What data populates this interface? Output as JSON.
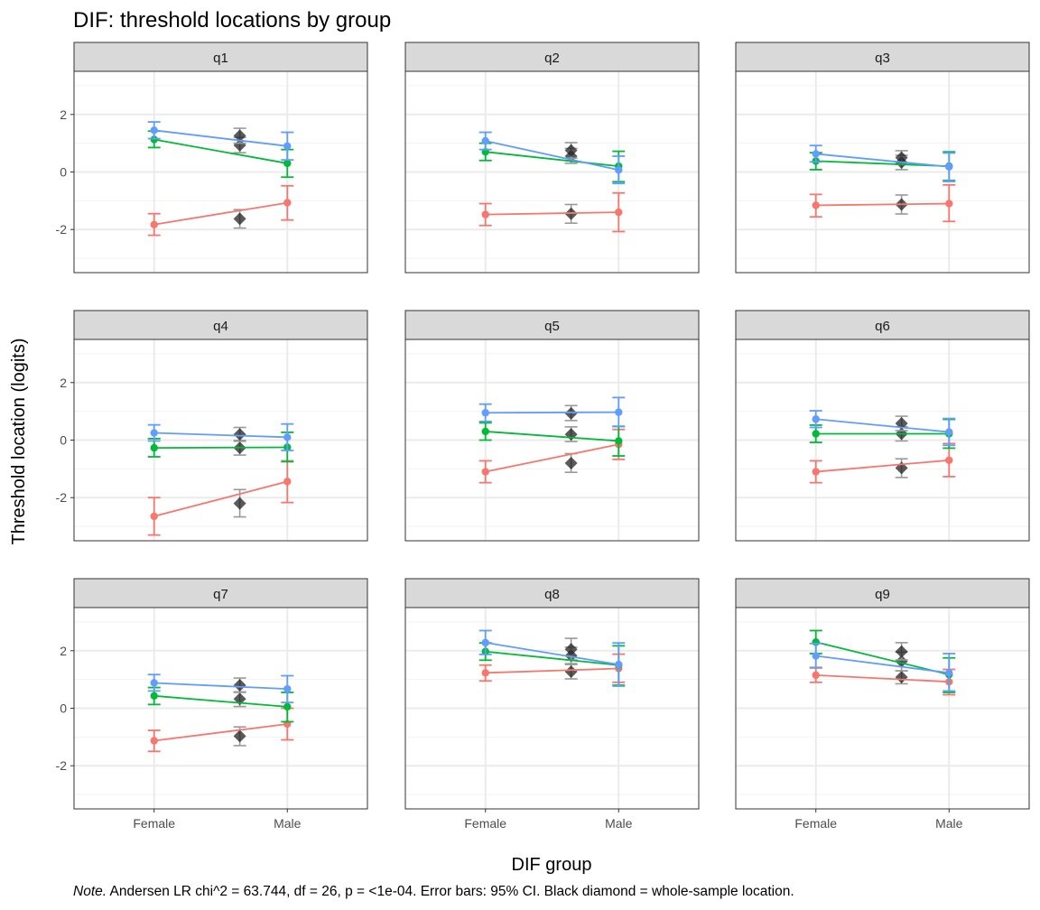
{
  "chart_data": {
    "type": "line",
    "title": "DIF: threshold locations by group",
    "xlabel": "DIF group",
    "ylabel": "Threshold location (logits)",
    "note_prefix": "Note.",
    "note_text": " Andersen LR chi^2 = 63.744, df = 26, p = <1e-04. Error bars: 95% CI. Black diamond = whole-sample location.",
    "categories": [
      "Female",
      "Male"
    ],
    "ylim": [
      -3.5,
      3.5
    ],
    "yticks": [
      2,
      0,
      -2
    ],
    "grid": true,
    "facets": [
      {
        "label": "q1",
        "series": [
          {
            "color": "#f8766d",
            "values": [
              -1.83,
              -1.07
            ],
            "ci": [
              [
                -2.2,
                -1.45
              ],
              [
                -1.67,
                -0.48
              ]
            ],
            "overall": -1.63,
            "overall_ci": [
              -1.95,
              -1.31
            ]
          },
          {
            "color": "#00ba38",
            "values": [
              1.13,
              0.3
            ],
            "ci": [
              [
                0.85,
                1.42
              ],
              [
                -0.18,
                0.78
              ]
            ],
            "overall": 0.93,
            "overall_ci": [
              0.67,
              1.2
            ]
          },
          {
            "color": "#619cff",
            "values": [
              1.45,
              0.9
            ],
            "ci": [
              [
                1.16,
                1.74
              ],
              [
                0.42,
                1.38
              ]
            ],
            "overall": 1.26,
            "overall_ci": [
              1.0,
              1.52
            ]
          }
        ]
      },
      {
        "label": "q2",
        "series": [
          {
            "color": "#f8766d",
            "values": [
              -1.48,
              -1.4
            ],
            "ci": [
              [
                -1.86,
                -1.1
              ],
              [
                -2.07,
                -0.73
              ]
            ],
            "overall": -1.45,
            "overall_ci": [
              -1.78,
              -1.13
            ]
          },
          {
            "color": "#00ba38",
            "values": [
              0.7,
              0.2
            ],
            "ci": [
              [
                0.4,
                1.0
              ],
              [
                -0.34,
                0.72
              ]
            ],
            "overall": 0.55,
            "overall_ci": [
              0.3,
              0.82
            ]
          },
          {
            "color": "#619cff",
            "values": [
              1.08,
              0.07
            ],
            "ci": [
              [
                0.78,
                1.38
              ],
              [
                -0.4,
                0.55
              ]
            ],
            "overall": 0.75,
            "overall_ci": [
              0.48,
              1.02
            ]
          }
        ]
      },
      {
        "label": "q3",
        "series": [
          {
            "color": "#f8766d",
            "values": [
              -1.16,
              -1.1
            ],
            "ci": [
              [
                -1.56,
                -0.78
              ],
              [
                -1.72,
                -0.45
              ]
            ],
            "overall": -1.13,
            "overall_ci": [
              -1.46,
              -0.8
            ]
          },
          {
            "color": "#00ba38",
            "values": [
              0.38,
              0.2
            ],
            "ci": [
              [
                0.08,
                0.67
              ],
              [
                -0.3,
                0.7
              ]
            ],
            "overall": 0.33,
            "overall_ci": [
              0.08,
              0.58
            ]
          },
          {
            "color": "#619cff",
            "values": [
              0.63,
              0.18
            ],
            "ci": [
              [
                0.35,
                0.92
              ],
              [
                -0.33,
                0.66
              ]
            ],
            "overall": 0.5,
            "overall_ci": [
              0.26,
              0.74
            ]
          }
        ]
      },
      {
        "label": "q4",
        "series": [
          {
            "color": "#f8766d",
            "values": [
              -2.65,
              -1.44
            ],
            "ci": [
              [
                -3.3,
                -2.0
              ],
              [
                -2.17,
                -0.72
              ]
            ],
            "overall": -2.2,
            "overall_ci": [
              -2.67,
              -1.72
            ]
          },
          {
            "color": "#00ba38",
            "values": [
              -0.27,
              -0.25
            ],
            "ci": [
              [
                -0.58,
                0.05
              ],
              [
                -0.75,
                0.27
              ]
            ],
            "overall": -0.27,
            "overall_ci": [
              -0.52,
              -0.01
            ]
          },
          {
            "color": "#619cff",
            "values": [
              0.25,
              0.1
            ],
            "ci": [
              [
                -0.03,
                0.53
              ],
              [
                -0.36,
                0.56
              ]
            ],
            "overall": 0.2,
            "overall_ci": [
              -0.04,
              0.44
            ]
          }
        ]
      },
      {
        "label": "q5",
        "series": [
          {
            "color": "#f8766d",
            "values": [
              -1.1,
              -0.15
            ],
            "ci": [
              [
                -1.48,
                -0.72
              ],
              [
                -0.67,
                0.37
              ]
            ],
            "overall": -0.8,
            "overall_ci": [
              -1.12,
              -0.47
            ]
          },
          {
            "color": "#00ba38",
            "values": [
              0.3,
              -0.03
            ],
            "ci": [
              [
                0.0,
                0.6
              ],
              [
                -0.55,
                0.48
              ]
            ],
            "overall": 0.2,
            "overall_ci": [
              -0.05,
              0.46
            ]
          },
          {
            "color": "#619cff",
            "values": [
              0.95,
              0.97
            ],
            "ci": [
              [
                0.65,
                1.25
              ],
              [
                0.47,
                1.48
              ]
            ],
            "overall": 0.93,
            "overall_ci": [
              0.68,
              1.2
            ]
          }
        ]
      },
      {
        "label": "q6",
        "series": [
          {
            "color": "#f8766d",
            "values": [
              -1.1,
              -0.7
            ],
            "ci": [
              [
                -1.48,
                -0.72
              ],
              [
                -1.27,
                -0.12
              ]
            ],
            "overall": -0.97,
            "overall_ci": [
              -1.3,
              -0.65
            ]
          },
          {
            "color": "#00ba38",
            "values": [
              0.22,
              0.22
            ],
            "ci": [
              [
                -0.08,
                0.52
              ],
              [
                -0.28,
                0.72
              ]
            ],
            "overall": 0.22,
            "overall_ci": [
              -0.03,
              0.47
            ]
          },
          {
            "color": "#619cff",
            "values": [
              0.73,
              0.28
            ],
            "ci": [
              [
                0.44,
                1.02
              ],
              [
                -0.18,
                0.75
              ]
            ],
            "overall": 0.58,
            "overall_ci": [
              0.33,
              0.83
            ]
          }
        ]
      },
      {
        "label": "q7",
        "series": [
          {
            "color": "#f8766d",
            "values": [
              -1.13,
              -0.55
            ],
            "ci": [
              [
                -1.5,
                -0.77
              ],
              [
                -1.1,
                0.0
              ]
            ],
            "overall": -0.97,
            "overall_ci": [
              -1.3,
              -0.65
            ]
          },
          {
            "color": "#00ba38",
            "values": [
              0.43,
              0.05
            ],
            "ci": [
              [
                0.13,
                0.72
              ],
              [
                -0.47,
                0.55
              ]
            ],
            "overall": 0.32,
            "overall_ci": [
              0.06,
              0.57
            ]
          },
          {
            "color": "#619cff",
            "values": [
              0.88,
              0.67
            ],
            "ci": [
              [
                0.6,
                1.17
              ],
              [
                0.2,
                1.13
              ]
            ],
            "overall": 0.8,
            "overall_ci": [
              0.55,
              1.05
            ]
          }
        ]
      },
      {
        "label": "q8",
        "series": [
          {
            "color": "#f8766d",
            "values": [
              1.23,
              1.38
            ],
            "ci": [
              [
                0.95,
                1.5
              ],
              [
                0.9,
                1.88
              ]
            ],
            "overall": 1.27,
            "overall_ci": [
              1.02,
              1.52
            ]
          },
          {
            "color": "#00ba38",
            "values": [
              1.97,
              1.5
            ],
            "ci": [
              [
                1.67,
                2.27
              ],
              [
                0.8,
                2.17
              ]
            ],
            "overall": 1.83,
            "overall_ci": [
              1.55,
              2.12
            ]
          },
          {
            "color": "#619cff",
            "values": [
              2.28,
              1.52
            ],
            "ci": [
              [
                1.87,
                2.7
              ],
              [
                0.77,
                2.27
              ]
            ],
            "overall": 2.05,
            "overall_ci": [
              1.68,
              2.43
            ]
          }
        ]
      },
      {
        "label": "q9",
        "series": [
          {
            "color": "#f8766d",
            "values": [
              1.15,
              0.92
            ],
            "ci": [
              [
                0.9,
                1.42
              ],
              [
                0.47,
                1.35
              ]
            ],
            "overall": 1.08,
            "overall_ci": [
              0.85,
              1.3
            ]
          },
          {
            "color": "#00ba38",
            "values": [
              2.3,
              1.17
            ],
            "ci": [
              [
                1.9,
                2.7
              ],
              [
                0.55,
                1.75
              ]
            ],
            "overall": 1.63,
            "overall_ci": [
              1.3,
              1.95
            ]
          },
          {
            "color": "#619cff",
            "values": [
              1.82,
              1.23
            ],
            "ci": [
              [
                1.4,
                2.25
              ],
              [
                0.6,
                1.9
              ]
            ],
            "overall": 1.97,
            "overall_ci": [
              1.68,
              2.28
            ]
          }
        ]
      }
    ]
  }
}
